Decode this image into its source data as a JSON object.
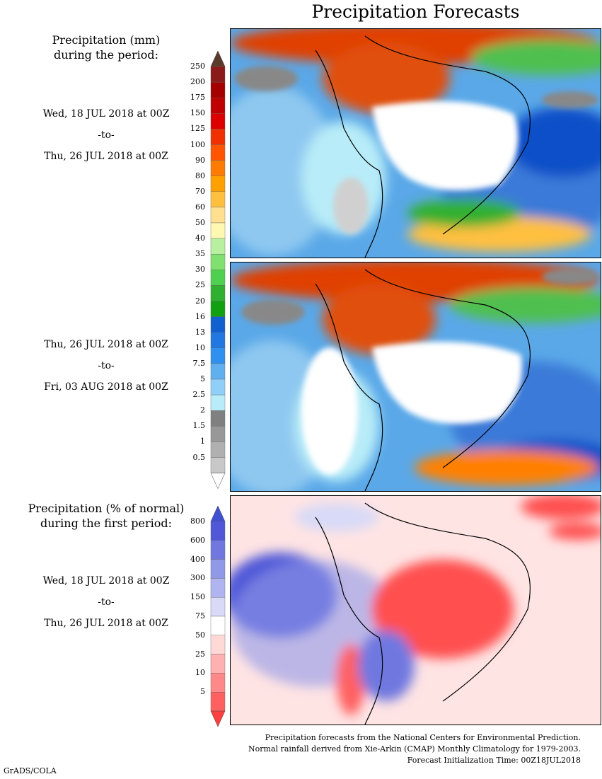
{
  "title": "Precipitation Forecasts",
  "legend_amount": {
    "heading_line1": "Precipitation (mm)",
    "heading_line2": "during the period:",
    "ticks": [
      "250",
      "200",
      "175",
      "150",
      "125",
      "100",
      "90",
      "80",
      "70",
      "60",
      "50",
      "40",
      "35",
      "30",
      "25",
      "20",
      "16",
      "13",
      "10",
      "7.5",
      "5",
      "2.5",
      "2",
      "1.5",
      "1",
      "0.5"
    ],
    "colors": [
      "#8b1a1a",
      "#a50000",
      "#c00000",
      "#dd0000",
      "#f03000",
      "#ff5500",
      "#ff7a00",
      "#ffa000",
      "#ffc040",
      "#ffe090",
      "#fff8b0",
      "#b8f0a0",
      "#80e070",
      "#50d050",
      "#30b030",
      "#10a010",
      "#1060d0",
      "#2078e0",
      "#3090f0",
      "#60b0f0",
      "#90d0f8",
      "#b8ecf8",
      "#808080",
      "#989898",
      "#b0b0b0",
      "#c8c8c8"
    ],
    "top_arrow_color": "#5a3a2a"
  },
  "period1": {
    "start": "Wed, 18 JUL 2018 at 00Z",
    "sep": "-to-",
    "end": "Thu, 26 JUL 2018 at 00Z"
  },
  "period2": {
    "start": "Thu, 26 JUL 2018 at 00Z",
    "sep": "-to-",
    "end": "Fri, 03 AUG 2018 at 00Z"
  },
  "legend_percent": {
    "heading_line1": "Precipitation (% of normal)",
    "heading_line2": "during the first period:",
    "ticks": [
      "800",
      "600",
      "400",
      "300",
      "150",
      "75",
      "50",
      "25",
      "10",
      "5"
    ],
    "colors": [
      "#5058d8",
      "#7078e0",
      "#9098e8",
      "#b0b4f0",
      "#d8daf8",
      "#ffffff",
      "#ffd8d8",
      "#ffb0b0",
      "#ff8888",
      "#ff6060"
    ],
    "top_arrow_color": "#4050d0",
    "bottom_arrow_color": "#ff4040"
  },
  "period3": {
    "start": "Wed, 18 JUL 2018 at 00Z",
    "sep": "-to-",
    "end": "Thu, 26 JUL 2018 at 00Z"
  },
  "footer": {
    "line1": "Precipitation forecasts from the National Centers for Environmental Prediction.",
    "line2": "Normal rainfall derived from Xie-Arkin (CMAP) Monthly Climatology for 1979-2003.",
    "line3": "Forecast Initialization Time: 00Z18JUL2018"
  },
  "credit": "GrADS/COLA"
}
